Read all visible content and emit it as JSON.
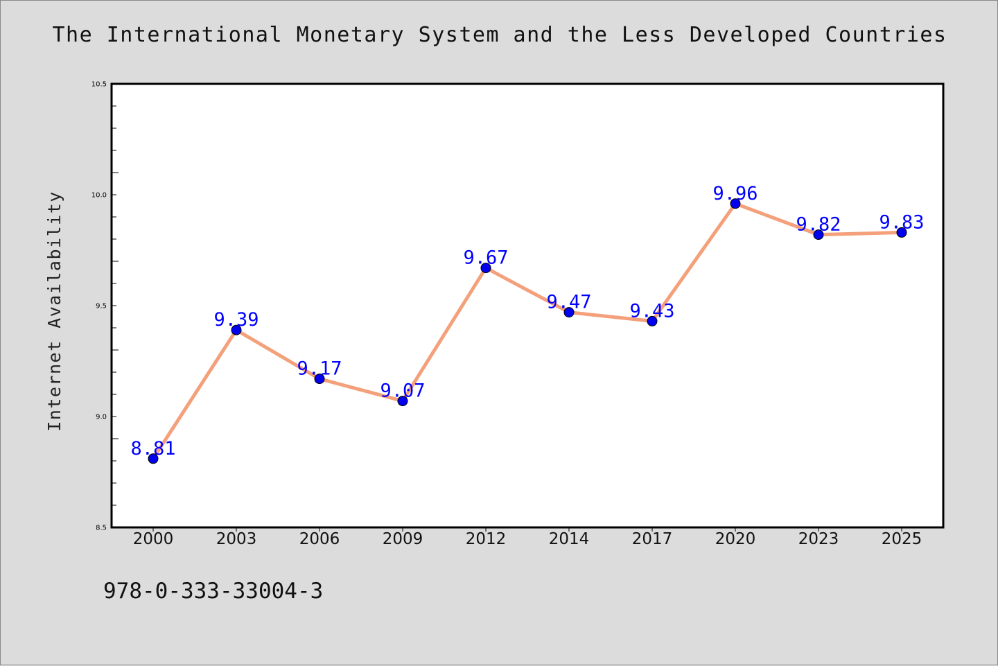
{
  "chart_data": {
    "type": "line",
    "title": "The International Monetary System and the Less Developed Countries",
    "xlabel": "",
    "ylabel": "Internet Availability",
    "categories": [
      "2000",
      "2003",
      "2006",
      "2009",
      "2012",
      "2014",
      "2017",
      "2020",
      "2023",
      "2025"
    ],
    "values": [
      8.81,
      9.39,
      9.17,
      9.07,
      9.67,
      9.47,
      9.43,
      9.96,
      9.82,
      9.83
    ],
    "ylim": [
      8.5,
      10.5
    ],
    "yticks": [
      "8.5",
      "9.0",
      "9.5",
      "10.0",
      "10.5"
    ],
    "grid": false,
    "data_labels": true,
    "line_color": "#f4a07a",
    "marker_color": "#0000ee",
    "label_color": "#0000ff"
  },
  "footer": {
    "isbn": "978-0-333-33004-3"
  }
}
